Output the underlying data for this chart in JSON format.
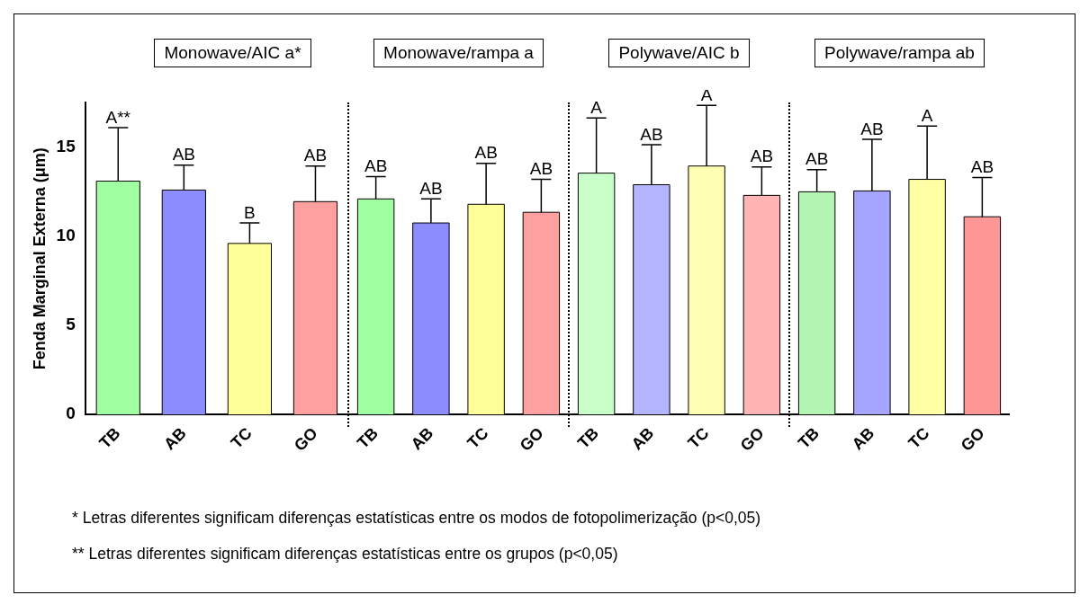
{
  "chart_data": [
    {
      "type": "bar",
      "title": "Monowave/AIC a*",
      "ylabel": "Fenda Marginal Externa (μm)",
      "categories": [
        "TB",
        "AB",
        "TC",
        "GO"
      ],
      "values": [
        13.1,
        12.6,
        9.6,
        11.95
      ],
      "errors": [
        3.0,
        1.4,
        1.15,
        2.0
      ],
      "colors": [
        "#a0ffa0",
        "#8c8cff",
        "#ffff99",
        "#ffa0a0"
      ],
      "ylim": [
        0,
        17.5
      ],
      "yticks": [
        0,
        5,
        10,
        15
      ],
      "annotations": [
        {
          "text": "A**",
          "x": "TB",
          "y": 16.1
        },
        {
          "text": "AB",
          "x": "AB",
          "y": 14.0
        },
        {
          "text": "B",
          "x": "TC",
          "y": 10.75
        },
        {
          "text": "AB",
          "x": "GO",
          "y": 13.95
        },
        "* Letras diferentes significam diferenças estatísticas entre os modos de fotopolimerização (p<0,05)",
        "** Letras diferentes significam diferenças estatísticas entre os grupos (p<0,05)"
      ]
    },
    {
      "type": "bar",
      "title": "Monowave/rampa a",
      "categories": [
        "TB",
        "AB",
        "TC",
        "GO"
      ],
      "values": [
        12.1,
        10.75,
        11.8,
        11.35
      ],
      "errors": [
        1.25,
        1.35,
        2.3,
        1.85
      ],
      "colors": [
        "#a0ffa0",
        "#8c8cff",
        "#ffff99",
        "#ffa0a0"
      ],
      "ylim": [
        0,
        17.5
      ],
      "yticks": [
        0,
        5,
        10,
        15
      ],
      "tick_labels": "x",
      "annotations": [
        {
          "text": "AB",
          "x": "TB",
          "y": 13.35
        },
        {
          "text": "AB",
          "x": "AB",
          "y": 12.1
        },
        {
          "text": "AB",
          "x": "TC",
          "y": 14.1
        },
        {
          "text": "AB",
          "x": "GO",
          "y": 13.2
        }
      ]
    },
    {
      "type": "bar",
      "title": "Polywave/AIC b",
      "categories": [
        "TB",
        "AB",
        "TC",
        "GO"
      ],
      "values": [
        13.55,
        12.9,
        13.95,
        12.3
      ],
      "errors": [
        3.1,
        2.25,
        3.4,
        1.6
      ],
      "colors": [
        "#c8ffc8",
        "#b4b4ff",
        "#ffffb4",
        "#ffb4b4"
      ],
      "ylim": [
        0,
        17.5
      ],
      "yticks": [
        0,
        5,
        10,
        15
      ],
      "tick_labels": "x",
      "annotations": [
        {
          "text": "A",
          "x": "TB",
          "y": 16.65
        },
        {
          "text": "AB",
          "x": "AB",
          "y": 15.15
        },
        {
          "text": "A",
          "x": "TC",
          "y": 17.35
        },
        {
          "text": "AB",
          "x": "GO",
          "y": 13.9
        }
      ]
    },
    {
      "type": "bar",
      "title": "Polywave/rampa ab",
      "categories": [
        "TB",
        "AB",
        "TC",
        "GO"
      ],
      "values": [
        12.5,
        12.55,
        13.2,
        11.1
      ],
      "errors": [
        1.25,
        2.9,
        3.0,
        2.2
      ],
      "colors": [
        "#b4f5b4",
        "#a5a5ff",
        "#ffffa5",
        "#ff9696"
      ],
      "ylim": [
        0,
        17.5
      ],
      "yticks": [
        0,
        5,
        10,
        15
      ],
      "tick_labels": "x",
      "annotations": [
        {
          "text": "AB",
          "x": "TB",
          "y": 13.75
        },
        {
          "text": "AB",
          "x": "AB",
          "y": 15.45
        },
        {
          "text": "A",
          "x": "TC",
          "y": 16.2
        },
        {
          "text": "AB",
          "x": "GO",
          "y": 13.3
        }
      ]
    }
  ]
}
